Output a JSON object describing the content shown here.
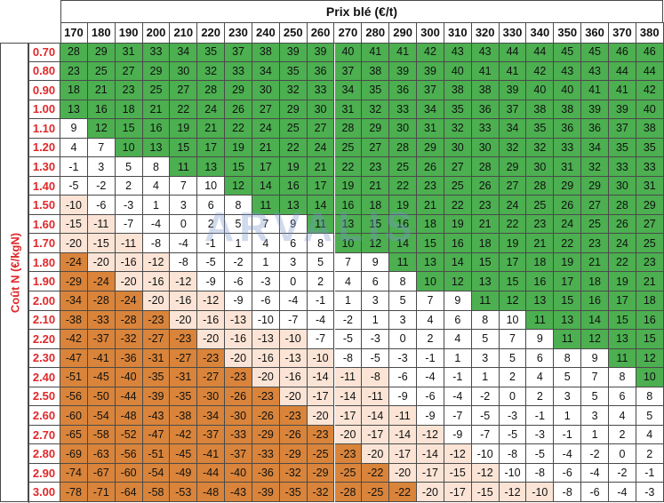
{
  "title": "Prix blé (€/t)",
  "ylabel": "Coût N (€/kgN)",
  "watermark": "ARVALIS",
  "colors": {
    "green": "#4caf50",
    "white": "#ffffff",
    "light_orange": "#fbe4d5",
    "orange": "#d9843a",
    "row_label": "#e0282a"
  },
  "chart_data": {
    "type": "table",
    "columns": [
      "170",
      "180",
      "190",
      "200",
      "210",
      "220",
      "230",
      "240",
      "250",
      "260",
      "270",
      "280",
      "290",
      "300",
      "310",
      "320",
      "330",
      "340",
      "350",
      "360",
      "370",
      "380"
    ],
    "rows": [
      {
        "label": "0.70",
        "values": [
          28,
          29,
          31,
          33,
          34,
          35,
          37,
          38,
          39,
          39,
          40,
          41,
          41,
          42,
          43,
          43,
          44,
          44,
          45,
          45,
          46,
          46
        ],
        "classes": "GGGGGGGGGGGGGGGGGGGGGG"
      },
      {
        "label": "0.80",
        "values": [
          23,
          25,
          27,
          29,
          30,
          32,
          33,
          34,
          35,
          36,
          37,
          38,
          39,
          39,
          40,
          41,
          41,
          42,
          43,
          43,
          44,
          44
        ],
        "classes": "GGGGGGGGGGGGGGGGGGGGGG"
      },
      {
        "label": "0.90",
        "values": [
          18,
          21,
          23,
          25,
          27,
          28,
          29,
          30,
          32,
          33,
          34,
          35,
          36,
          37,
          38,
          38,
          39,
          40,
          40,
          41,
          41,
          42
        ],
        "classes": "GGGGGGGGGGGGGGGGGGGGGG"
      },
      {
        "label": "1.00",
        "values": [
          13,
          16,
          18,
          21,
          22,
          24,
          26,
          27,
          29,
          30,
          31,
          32,
          33,
          34,
          35,
          36,
          37,
          38,
          38,
          39,
          39,
          40
        ],
        "classes": "GGGGGGGGGGGGGGGGGGGGGG"
      },
      {
        "label": "1.10",
        "values": [
          9,
          12,
          15,
          16,
          19,
          21,
          22,
          24,
          25,
          27,
          28,
          29,
          30,
          31,
          32,
          33,
          34,
          35,
          36,
          36,
          37,
          38
        ],
        "classes": "WGGGGGGGGGGGGGGGGGGGGG"
      },
      {
        "label": "1.20",
        "values": [
          4,
          7,
          10,
          13,
          15,
          17,
          19,
          21,
          22,
          24,
          25,
          27,
          28,
          29,
          30,
          30,
          32,
          32,
          33,
          34,
          35,
          35
        ],
        "classes": "WWGGGGGGGGGGGGGGGGGGGG"
      },
      {
        "label": "1.30",
        "values": [
          -1,
          3,
          5,
          8,
          11,
          13,
          15,
          17,
          19,
          21,
          22,
          23,
          25,
          26,
          27,
          28,
          29,
          30,
          31,
          32,
          33,
          33
        ],
        "classes": "WWWWGGGGGGGGGGGGGGGGGG"
      },
      {
        "label": "1.40",
        "values": [
          -5,
          -2,
          2,
          4,
          7,
          10,
          12,
          14,
          16,
          17,
          19,
          21,
          22,
          23,
          25,
          26,
          27,
          28,
          29,
          29,
          30,
          31
        ],
        "classes": "WWWWWWGGGGGGGGGGGGGGGG"
      },
      {
        "label": "1.50",
        "values": [
          -10,
          -6,
          -3,
          1,
          3,
          6,
          8,
          11,
          13,
          14,
          16,
          18,
          19,
          21,
          22,
          23,
          24,
          25,
          26,
          27,
          28,
          29
        ],
        "classes": "LWWWWWWGGGGGGGGGGGGGGG"
      },
      {
        "label": "1.60",
        "values": [
          -15,
          -11,
          -7,
          -4,
          0,
          2,
          5,
          7,
          9,
          11,
          13,
          15,
          16,
          18,
          19,
          21,
          22,
          23,
          24,
          25,
          26,
          27
        ],
        "classes": "LLWWWWWWWGGGGGGGGGGGGG"
      },
      {
        "label": "1.70",
        "values": [
          -20,
          -15,
          -11,
          -8,
          -4,
          -1,
          1,
          4,
          6,
          8,
          10,
          12,
          14,
          15,
          16,
          18,
          19,
          21,
          22,
          23,
          24,
          25
        ],
        "classes": "LLLWWWWWWWGGGGGGGGGGGG"
      },
      {
        "label": "1.80",
        "values": [
          -24,
          -20,
          -16,
          -12,
          -8,
          -5,
          -2,
          1,
          3,
          5,
          7,
          9,
          11,
          13,
          14,
          15,
          17,
          18,
          19,
          21,
          22,
          23
        ],
        "classes": "OLLLWWWWWWWWGGGGGGGGGG"
      },
      {
        "label": "1.90",
        "values": [
          -29,
          -24,
          -20,
          -16,
          -12,
          -9,
          -6,
          -3,
          0,
          2,
          4,
          6,
          8,
          10,
          12,
          13,
          15,
          16,
          17,
          18,
          19,
          21
        ],
        "classes": "OOLLLWWWWWWWWGGGGGGGGG"
      },
      {
        "label": "2.00",
        "values": [
          -34,
          -28,
          -24,
          -20,
          -16,
          -12,
          -9,
          -6,
          -4,
          -1,
          1,
          3,
          5,
          7,
          9,
          11,
          12,
          13,
          15,
          16,
          17,
          18
        ],
        "classes": "OOOLLLWWWWWWWWWGGGGGGG"
      },
      {
        "label": "2.10",
        "values": [
          -38,
          -33,
          -28,
          -23,
          -20,
          -16,
          -13,
          -10,
          -7,
          -4,
          -2,
          1,
          3,
          4,
          6,
          8,
          10,
          11,
          13,
          14,
          15,
          16
        ],
        "classes": "OOOOLLLWWWWWWWWWWGGGGG"
      },
      {
        "label": "2.20",
        "values": [
          -42,
          -37,
          -32,
          -27,
          -23,
          -20,
          -16,
          -13,
          -10,
          -7,
          -5,
          -3,
          0,
          2,
          4,
          5,
          7,
          9,
          11,
          12,
          13,
          15
        ],
        "classes": "OOOOOLLLLWWWWWWWWWGGGG"
      },
      {
        "label": "2.30",
        "values": [
          -47,
          -41,
          -36,
          -31,
          -27,
          -23,
          -20,
          -16,
          -13,
          -10,
          -8,
          -5,
          -3,
          -1,
          1,
          3,
          5,
          6,
          8,
          9,
          11,
          12
        ],
        "classes": "OOOOOOLLLLWWWWWWWWWWGG"
      },
      {
        "label": "2.40",
        "values": [
          -51,
          -45,
          -40,
          -35,
          -31,
          -27,
          -23,
          -20,
          -16,
          -14,
          -11,
          -8,
          -6,
          -4,
          -1,
          1,
          2,
          4,
          5,
          7,
          8,
          10
        ],
        "classes": "OOOOOOOLLLLLWWWWWWWWWG"
      },
      {
        "label": "2.50",
        "values": [
          -56,
          -50,
          -44,
          -39,
          -35,
          -30,
          -26,
          -23,
          -20,
          -17,
          -14,
          -11,
          -9,
          -6,
          -4,
          -2,
          0,
          2,
          3,
          5,
          6,
          8
        ],
        "classes": "OOOOOOOOLLLLWWWWWWWWWW"
      },
      {
        "label": "2.60",
        "values": [
          -60,
          -54,
          -48,
          -43,
          -38,
          -34,
          -30,
          -26,
          -23,
          -20,
          -17,
          -14,
          -11,
          -9,
          -7,
          -5,
          -3,
          -1,
          1,
          3,
          4,
          5
        ],
        "classes": "OOOOOOOOOLLLLWWWWWWWWW"
      },
      {
        "label": "2.70",
        "values": [
          -65,
          -58,
          -52,
          -47,
          -42,
          -37,
          -33,
          -29,
          -26,
          -23,
          -20,
          -17,
          -14,
          -12,
          -9,
          -7,
          -5,
          -3,
          -1,
          1,
          2,
          4
        ],
        "classes": "OOOOOOOOOOLLLLWWWWWWWW"
      },
      {
        "label": "2.80",
        "values": [
          -69,
          -63,
          -56,
          -51,
          -45,
          -41,
          -37,
          -33,
          -29,
          -25,
          -23,
          -20,
          -17,
          -14,
          -12,
          -10,
          -8,
          -5,
          -4,
          -2,
          0,
          2
        ],
        "classes": "OOOOOOOOOOOLLLLWWWWWWW"
      },
      {
        "label": "2.90",
        "values": [
          -74,
          -67,
          -60,
          -54,
          -49,
          -44,
          -40,
          -36,
          -32,
          -29,
          -25,
          -22,
          -20,
          -17,
          -15,
          -12,
          -10,
          -8,
          -6,
          -4,
          -2,
          -1
        ],
        "classes": "OOOOOOOOOOOOLLLLWWWWWW"
      },
      {
        "label": "3.00",
        "values": [
          -78,
          -71,
          -64,
          -58,
          -53,
          -48,
          -43,
          -39,
          -35,
          -32,
          -28,
          -25,
          -22,
          -20,
          -17,
          -15,
          -12,
          -10,
          -8,
          -6,
          -4,
          -3
        ],
        "classes": "OOOOOOOOOOOOOLLLLLWWWW"
      }
    ]
  }
}
